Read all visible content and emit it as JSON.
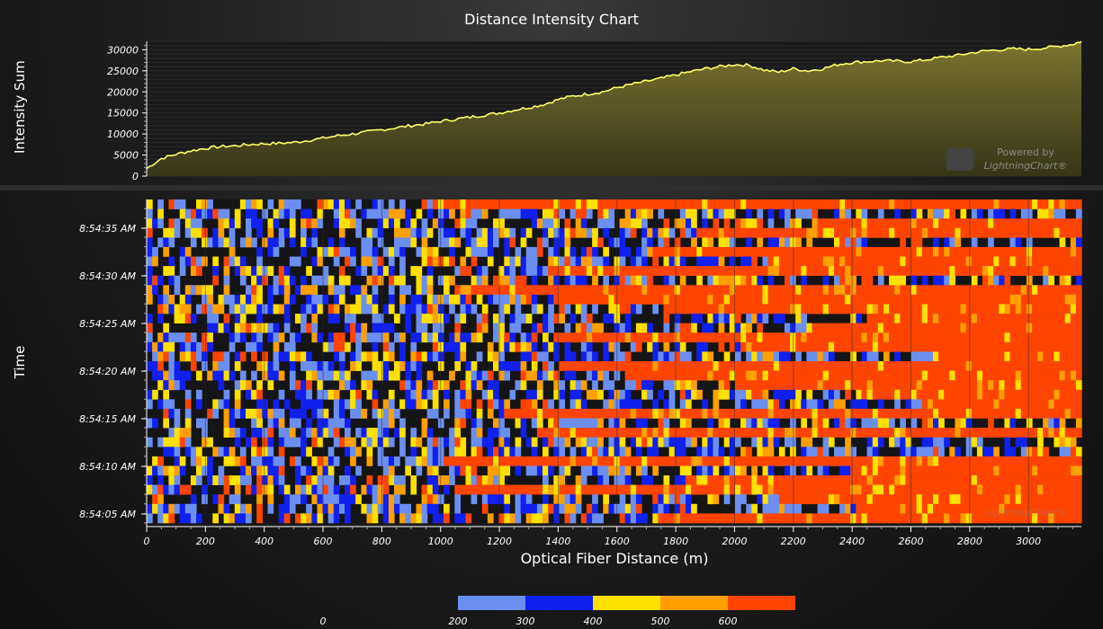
{
  "chart_data": [
    {
      "type": "area",
      "title": "Distance Intensity Chart",
      "ylabel": "Intensity Sum",
      "xlim": [
        0,
        3180
      ],
      "ylim": [
        0,
        32000
      ],
      "yticks": [
        "0",
        "5000",
        "10000",
        "15000",
        "20000",
        "25000",
        "30000"
      ],
      "x": [
        0,
        50,
        100,
        150,
        200,
        250,
        300,
        350,
        400,
        450,
        500,
        550,
        600,
        650,
        700,
        750,
        800,
        850,
        900,
        950,
        1000,
        1050,
        1100,
        1150,
        1200,
        1250,
        1300,
        1350,
        1400,
        1450,
        1500,
        1550,
        1600,
        1650,
        1700,
        1750,
        1800,
        1850,
        1900,
        1950,
        2000,
        2050,
        2100,
        2150,
        2200,
        2250,
        2300,
        2350,
        2400,
        2450,
        2500,
        2550,
        2600,
        2650,
        2700,
        2750,
        2800,
        2850,
        2900,
        2950,
        3000,
        3050,
        3100,
        3150,
        3180
      ],
      "values": [
        1800,
        4200,
        5200,
        6000,
        6600,
        7000,
        7200,
        7500,
        7700,
        7800,
        8000,
        8500,
        9000,
        9600,
        10000,
        10500,
        11000,
        11500,
        12000,
        12400,
        13000,
        13500,
        14000,
        14500,
        15000,
        15700,
        16300,
        17000,
        18200,
        19000,
        19500,
        20000,
        21000,
        21800,
        22500,
        23200,
        24000,
        24800,
        25500,
        26000,
        26500,
        26300,
        25200,
        24700,
        25500,
        25000,
        25500,
        26500,
        27000,
        27200,
        27400,
        27300,
        27200,
        27600,
        28200,
        28600,
        29200,
        29700,
        30000,
        30200,
        30100,
        30400,
        30800,
        31300,
        32000
      ],
      "line_color": "#ffff66",
      "fill_color": "#807a30"
    },
    {
      "type": "heatmap",
      "ylabel": "Time",
      "xlabel": "Optical Fiber Distance (m)",
      "xlim": [
        0,
        3180
      ],
      "xticks": [
        0,
        200,
        400,
        600,
        800,
        1000,
        1200,
        1400,
        1600,
        1800,
        2000,
        2200,
        2400,
        2600,
        2800,
        3000
      ],
      "yticks": [
        "8:54:05 AM",
        "8:54:10 AM",
        "8:54:15 AM",
        "8:54:20 AM",
        "8:54:25 AM",
        "8:54:30 AM",
        "8:54:35 AM"
      ],
      "rows": 34,
      "palette": [
        {
          "value": 0,
          "color": "#111111"
        },
        {
          "value": 200,
          "color": "#6b8ff0"
        },
        {
          "value": 300,
          "color": "#1020ee"
        },
        {
          "value": 400,
          "color": "#ffe000"
        },
        {
          "value": 500,
          "color": "#ffa000"
        },
        {
          "value": 600,
          "color": "#ff4400"
        }
      ]
    }
  ],
  "legend": {
    "labels": [
      "0",
      "200",
      "300",
      "400",
      "500",
      "600"
    ]
  },
  "watermark": {
    "top_line1": "Powered by",
    "top_line2": "LightningChart",
    "bottom": "LightningChart"
  }
}
